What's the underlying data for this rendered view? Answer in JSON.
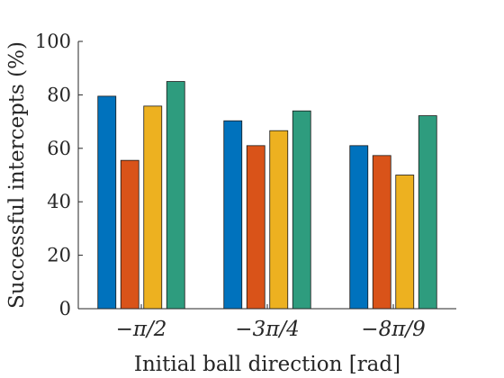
{
  "chart_data": {
    "type": "bar",
    "xlabel": "Initial ball direction [rad]",
    "ylabel": "Successful intercepts (%)",
    "categories": [
      "−π/2",
      "−3π/4",
      "−8π/9"
    ],
    "ylim": [
      0,
      100
    ],
    "yticks": [
      0,
      20,
      40,
      60,
      80,
      100
    ],
    "grid": false,
    "series": [
      {
        "color": "#0072BD",
        "values": [
          79.5,
          70.3,
          61.0
        ]
      },
      {
        "color": "#D95319",
        "values": [
          55.5,
          61.0,
          57.3
        ]
      },
      {
        "color": "#EDB120",
        "values": [
          75.8,
          66.6,
          50.0
        ]
      },
      {
        "color": "#2E9C7E",
        "values": [
          85.0,
          74.0,
          72.2
        ]
      }
    ]
  }
}
